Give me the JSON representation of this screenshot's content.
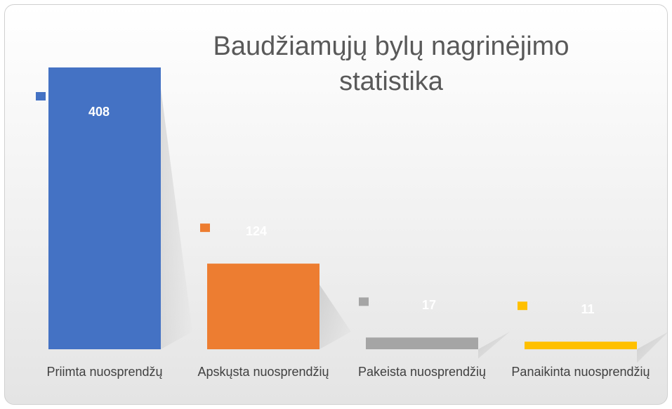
{
  "chart_data": {
    "type": "bar",
    "title": "Baudžiamųjų bylų nagrinėjimo statistika",
    "categories": [
      "Priimta nuosprendžų",
      "Apskųsta nuosprendžių",
      "Pakeista nuosprendžių",
      "Panaikinta nuosprendžių"
    ],
    "values": [
      408,
      124,
      17,
      11
    ],
    "colors": [
      "#4472c4",
      "#ed7d31",
      "#a5a5a5",
      "#ffc000"
    ]
  }
}
